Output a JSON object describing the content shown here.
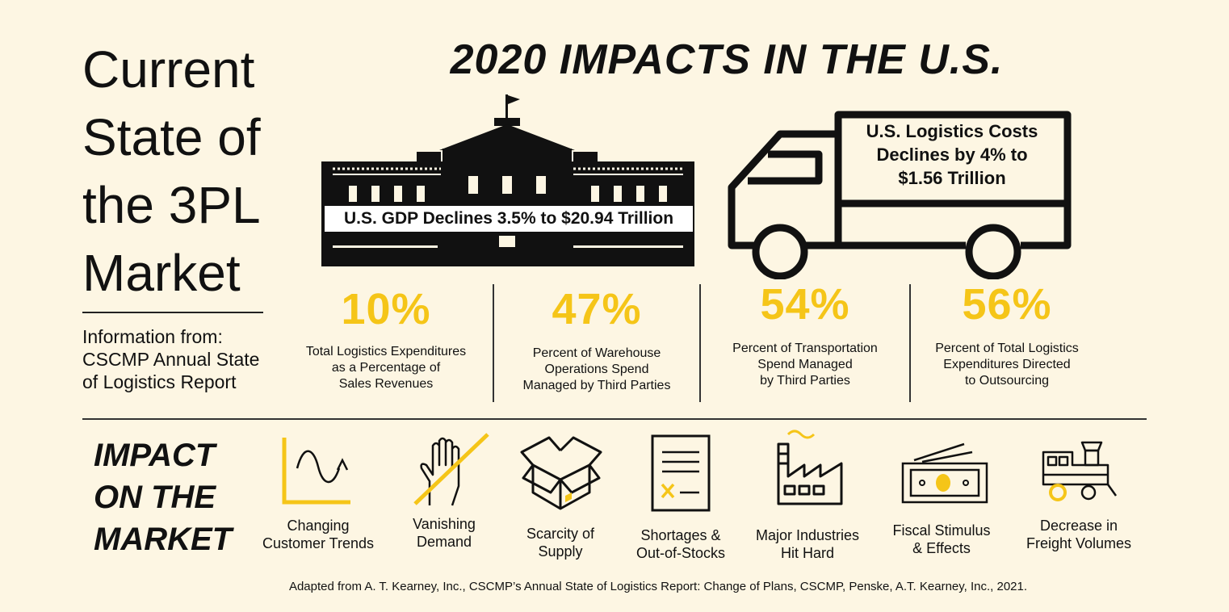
{
  "title_lines": [
    "Current",
    "State of",
    "the 3PL",
    "Market"
  ],
  "source_lines": [
    "Information from:",
    "CSCMP Annual State",
    "of Logistics Report"
  ],
  "banner": "2020 IMPACTS IN THE U.S.",
  "gdp_label": "U.S. GDP Declines 3.5% to $20.94 Trillion",
  "truck_label_lines": [
    "U.S. Logistics Costs",
    "Declines by 4% to",
    "$1.56 Trillion"
  ],
  "stats": [
    {
      "value": "10%",
      "desc": [
        "Total Logistics Expenditures",
        "as a Percentage of",
        "Sales Revenues"
      ]
    },
    {
      "value": "47%",
      "desc": [
        "Percent of Warehouse",
        "Operations Spend",
        "Managed by Third Parties"
      ]
    },
    {
      "value": "54%",
      "desc": [
        "Percent of Transportation",
        "Spend Managed",
        "by Third Parties"
      ]
    },
    {
      "value": "56%",
      "desc": [
        "Percent of Total Logistics",
        "Expenditures Directed",
        "to Outsourcing"
      ]
    }
  ],
  "impact_title_lines": [
    "IMPACT",
    "ON THE",
    "MARKET"
  ],
  "impacts": [
    {
      "icon": "trend-chart-icon",
      "label": [
        "Changing",
        "Customer Trends"
      ]
    },
    {
      "icon": "crossed-hand-icon",
      "label": [
        "Vanishing",
        "Demand"
      ]
    },
    {
      "icon": "open-box-icon",
      "label": [
        "Scarcity of",
        "Supply"
      ]
    },
    {
      "icon": "checklist-icon",
      "label": [
        "Shortages &",
        "Out-of-Stocks"
      ]
    },
    {
      "icon": "factory-icon",
      "label": [
        "Major Industries",
        "Hit Hard"
      ]
    },
    {
      "icon": "banknotes-icon",
      "label": [
        "Fiscal Stimulus",
        "& Effects"
      ]
    },
    {
      "icon": "train-icon",
      "label": [
        "Decrease in",
        "Freight Volumes"
      ]
    }
  ],
  "footnote": "Adapted from A. T. Kearney, Inc., CSCMP’s Annual State of Logistics Report: Change of Plans, CSCMP, Penske, A.T. Kearney, Inc., 2021.",
  "colors": {
    "background": "#fdf6e3",
    "accent": "#f5c518",
    "ink": "#111111"
  }
}
